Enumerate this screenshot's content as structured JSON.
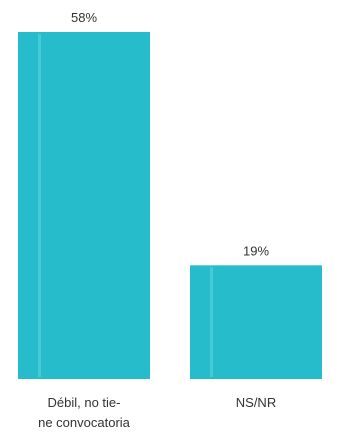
{
  "chart_data": {
    "type": "bar",
    "categories": [
      [
        "Débil, no tie-",
        "ne convocatoria"
      ],
      [
        "NS/NR"
      ]
    ],
    "values": [
      58,
      19
    ],
    "value_labels": [
      "58%",
      "19%"
    ],
    "ylim": [
      0,
      58
    ],
    "grid": false,
    "legend": "none",
    "colors": {
      "bar": "#27bccb",
      "bar_highlight": "#46cad6",
      "baseline": "#d8d8d8",
      "text": "#333333"
    }
  }
}
